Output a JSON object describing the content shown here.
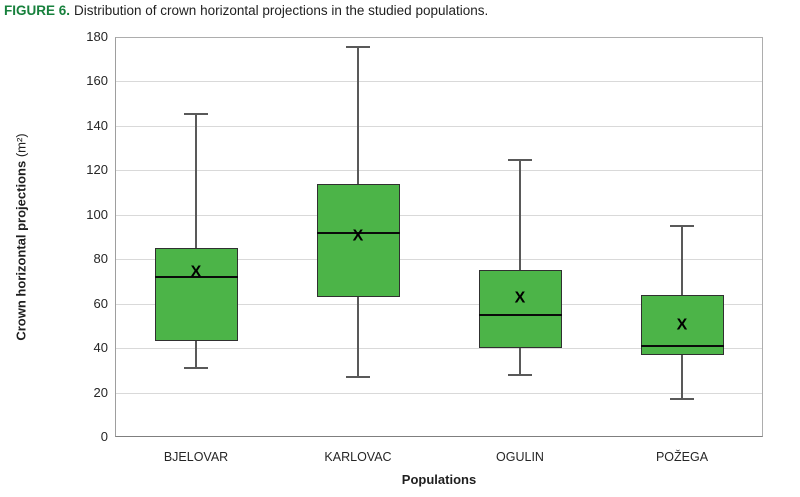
{
  "figure": {
    "label": "FIGURE 6.",
    "caption": "Distribution of crown horizontal projections in the studied populations."
  },
  "chart_data": {
    "type": "box",
    "categories": [
      "BJELOVAR",
      "KARLOVAC",
      "OGULIN",
      "POŽEGA"
    ],
    "series": [
      {
        "name": "BJELOVAR",
        "whisker_low": 31,
        "q1": 43,
        "median": 72,
        "mean": 74,
        "q3": 85,
        "whisker_high": 145.5
      },
      {
        "name": "KARLOVAC",
        "whisker_low": 27,
        "q1": 63,
        "median": 92,
        "mean": 90,
        "q3": 114,
        "whisker_high": 175.5
      },
      {
        "name": "OGULIN",
        "whisker_low": 28,
        "q1": 40,
        "median": 55,
        "mean": 62,
        "q3": 75,
        "whisker_high": 124.5
      },
      {
        "name": "POŽEGA",
        "whisker_low": 17,
        "q1": 37,
        "median": 41,
        "mean": 50,
        "q3": 64,
        "whisker_high": 95
      }
    ],
    "mean_marker_glyph": "X",
    "xlabel": "Populations",
    "ylabel": "Crown horizontal projections (m²)",
    "ylabel_main": "Crown horizontal projections",
    "ylabel_unit": "(m²)",
    "ylim": [
      0,
      180
    ],
    "ytick_step": 20,
    "grid": true,
    "legend": "none"
  },
  "colors": {
    "figure_label_green": "#17803C",
    "box_fill": "#4CB448",
    "box_border": "#303030",
    "median_line": "#0a0a0a",
    "whisker": "#595959",
    "gridline": "#D9D9D9",
    "plot_frame": "#ADADAD",
    "x_axis_line": "#7F7F7F",
    "text": "#262626"
  }
}
